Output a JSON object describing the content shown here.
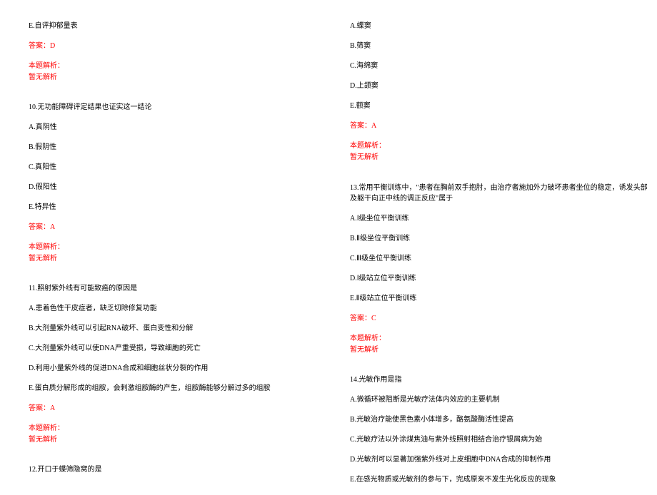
{
  "left": {
    "q9": {
      "optE": "E.自评抑郁量表",
      "answer": "答案：D",
      "analysisLabel": "本题解析：",
      "analysisText": "暂无解析"
    },
    "q10": {
      "stem": "10.无功能障碍评定结果也证实这一结论",
      "optA": "A.真阴性",
      "optB": "B.假阴性",
      "optC": "C.真阳性",
      "optD": "D.假阳性",
      "optE": "E.特异性",
      "answer": "答案：A",
      "analysisLabel": "本题解析：",
      "analysisText": "暂无解析"
    },
    "q11": {
      "stem": "11.照射紫外线有可能致癌的原因是",
      "optA": "A.患着色性干皮症者，缺乏切除修复功能",
      "optB": "B.大剂量紫外线可以引起RNA破坏、蛋白变性和分解",
      "optC": "C.大剂量紫外线可以使DNA严重受损，导致细胞的死亡",
      "optD": "D.利用小量紫外线的促进DNA合成和细胞丝状分裂的作用",
      "optE": "E.蛋白质分解形成的组胺，会刺激组胺酶的产生，组胺酶能够分解过多的组胺",
      "answer": "答案：A",
      "analysisLabel": "本题解析：",
      "analysisText": "暂无解析"
    },
    "q12": {
      "stem": "12.开口于蝶筛隐窝的是"
    }
  },
  "right": {
    "q12": {
      "optA": "A.蝶窦",
      "optB": "B.筛窦",
      "optC": "C.海绵窦",
      "optD": "D.上颌窦",
      "optE": "E.额窦",
      "answer": "答案：A",
      "analysisLabel": "本题解析：",
      "analysisText": "暂无解析"
    },
    "q13": {
      "stem": "13.常用平衡训练中，\"患者在胸前双手抱肘，由治疗者施加外力破坏患者坐位的稳定，诱发头部及躯干向正中线的调正反应\"属于",
      "optA": "A.Ⅰ级坐位平衡训练",
      "optB": "B.Ⅱ级坐位平衡训练",
      "optC": "C.Ⅲ级坐位平衡训练",
      "optD": "D.Ⅰ级站立位平衡训练",
      "optE": "E.Ⅱ级站立位平衡训练",
      "answer": "答案：C",
      "analysisLabel": "本题解析：",
      "analysisText": "暂无解析"
    },
    "q14": {
      "stem": "14.光敏作用是指",
      "optA": "A.微循环被阻断是光敏疗法体内效应的主要机制",
      "optB": "B.光敏治疗能使黑色素小体增多，酪氨酸酶活性提高",
      "optC": "C.光敏疗法以外涂煤焦油与紫外线照射相结合治疗银屑病为始",
      "optD": "D.光敏剂可以显著加强紫外线对上皮细胞中DNA合成的抑制作用",
      "optE": "E.在感光物质或光敏剂的参与下，完成原来不发生光化反应的现象"
    }
  }
}
